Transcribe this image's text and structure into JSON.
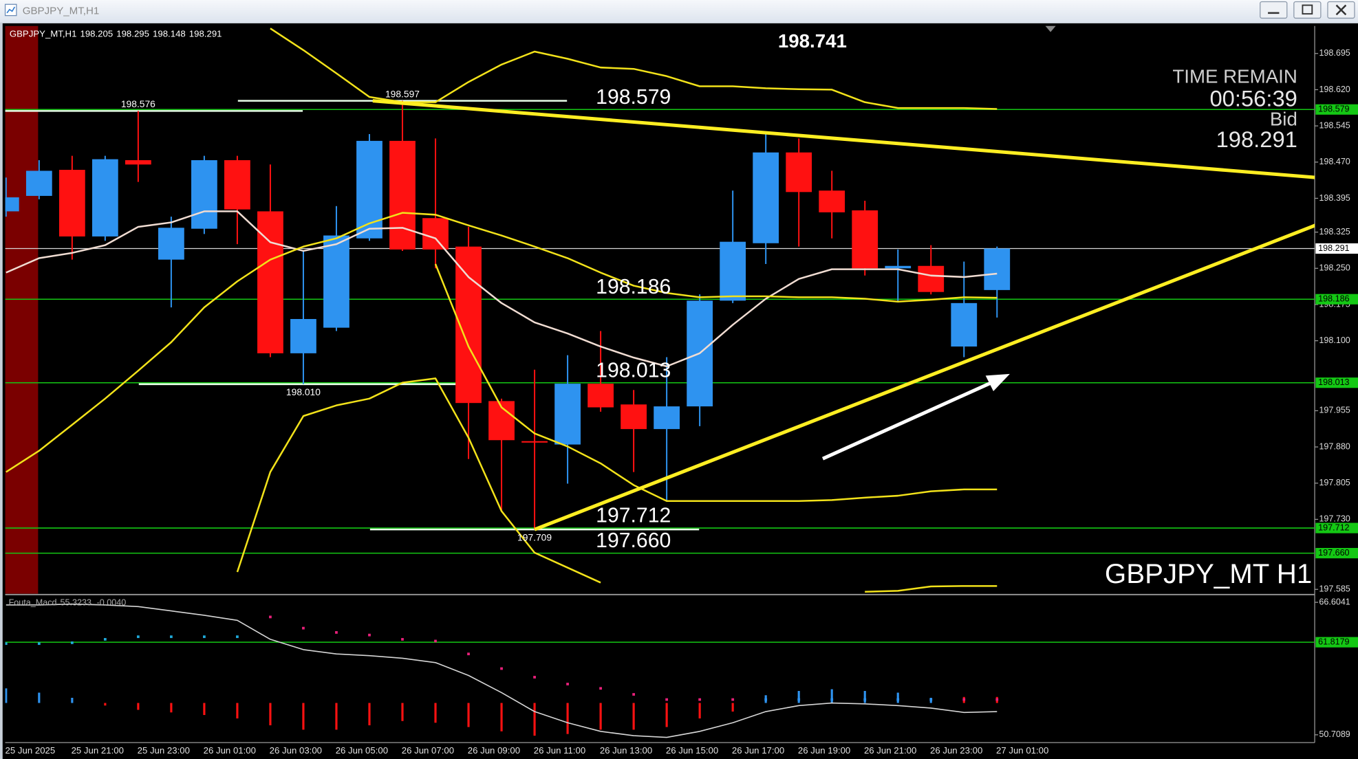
{
  "chart_data": {
    "type": "candlestick",
    "title": "GBPJPY_MT,H1",
    "categories": [
      "25 Jun 2025",
      null,
      "25 Jun 21:00",
      null,
      "25 Jun 23:00",
      null,
      "26 Jun 01:00",
      null,
      "26 Jun 03:00",
      null,
      "26 Jun 05:00",
      null,
      "26 Jun 07:00",
      null,
      "26 Jun 09:00",
      null,
      "26 Jun 11:00",
      null,
      "26 Jun 13:00",
      null,
      "26 Jun 15:00",
      null,
      "26 Jun 17:00",
      null,
      "26 Jun 19:00",
      null,
      "26 Jun 21:00",
      null,
      "26 Jun 23:00",
      null,
      "27 Jun 01:00"
    ],
    "open": [
      198.368,
      198.4,
      198.454,
      198.316,
      198.474,
      198.268,
      198.332,
      198.474,
      198.368,
      198.074,
      198.127,
      198.312,
      198.514,
      198.354,
      198.295,
      197.975,
      197.892,
      197.885,
      198.011,
      197.968,
      197.917,
      197.964,
      198.183,
      198.302,
      198.49,
      198.411,
      198.37,
      198.25,
      198.255,
      198.088,
      198.205
    ],
    "high": [
      198.438,
      198.474,
      198.483,
      198.483,
      198.576,
      198.357,
      198.483,
      198.483,
      198.465,
      198.286,
      198.379,
      198.528,
      198.597,
      198.519,
      198.336,
      197.98,
      198.04,
      198.07,
      198.12,
      197.998,
      198.066,
      198.196,
      198.411,
      198.528,
      198.519,
      198.452,
      198.39,
      198.289,
      198.298,
      198.264,
      198.295
    ],
    "low": [
      198.357,
      198.393,
      198.268,
      198.307,
      198.429,
      198.169,
      198.321,
      198.3,
      198.066,
      198.01,
      198.12,
      198.307,
      198.286,
      198.25,
      197.855,
      197.747,
      197.709,
      197.804,
      197.953,
      197.828,
      197.768,
      197.923,
      198.178,
      198.259,
      198.295,
      198.312,
      198.235,
      198.181,
      198.196,
      198.066,
      198.148
    ],
    "close": [
      198.397,
      198.452,
      198.316,
      198.476,
      198.465,
      198.334,
      198.474,
      198.372,
      198.074,
      198.145,
      198.318,
      198.514,
      198.289,
      198.289,
      197.971,
      197.894,
      197.889,
      198.011,
      197.962,
      197.917,
      197.964,
      198.183,
      198.305,
      198.49,
      198.408,
      198.366,
      198.25,
      198.255,
      198.201,
      198.178,
      198.291
    ],
    "up_color": "#2e93f0",
    "down_color": "#ff1111",
    "ylim": [
      197.576,
      198.752
    ],
    "yticks": [
      198.695,
      {
        "value": 198.62,
        "label": "198.620"
      },
      198.545,
      {
        "value": 198.47,
        "label": "198.470"
      },
      198.395,
      198.325,
      {
        "value": 198.25,
        "label": "198.250"
      },
      198.175,
      {
        "value": 198.1,
        "label": "198.100"
      },
      197.955,
      {
        "value": 197.88,
        "label": "197.880"
      },
      197.805,
      {
        "value": 197.73,
        "label": "197.730"
      },
      197.585
    ],
    "overlays": [
      {
        "color": "#f0dcd2",
        "values": [
          198.241,
          198.271,
          198.282,
          198.298,
          198.336,
          198.345,
          198.368,
          198.368,
          198.304,
          198.286,
          198.3,
          198.332,
          198.334,
          198.312,
          198.232,
          198.178,
          198.138,
          198.115,
          198.088,
          198.065,
          198.047,
          198.074,
          198.133,
          198.187,
          198.228,
          198.248,
          198.248,
          198.248,
          198.235,
          198.232,
          198.239
        ]
      },
      {
        "color": "#f2e21a",
        "values": [
          197.828,
          197.872,
          197.926,
          197.98,
          198.038,
          198.097,
          198.169,
          198.223,
          198.268,
          198.295,
          198.312,
          198.343,
          198.365,
          198.361,
          198.339,
          198.318,
          198.295,
          198.271,
          198.241,
          198.214,
          198.199,
          198.19,
          198.192,
          198.192,
          198.19,
          198.19,
          198.187,
          198.181,
          198.185,
          198.19,
          198.189
        ]
      },
      {
        "color": "#f2e21a",
        "values": [
          null,
          null,
          null,
          null,
          null,
          null,
          null,
          197.621,
          197.828,
          197.944,
          197.966,
          197.98,
          198.013,
          198.022,
          197.899,
          197.747,
          197.661,
          197.63,
          197.599,
          null,
          null,
          null,
          null,
          null,
          null,
          null,
          197.58,
          197.582,
          197.591,
          197.592,
          197.592
        ]
      },
      {
        "color": "#f2e21a",
        "values": [
          null,
          null,
          null,
          null,
          null,
          null,
          null,
          null,
          198.747,
          198.702,
          198.654,
          198.605,
          198.594,
          198.594,
          198.636,
          198.672,
          198.699,
          198.684,
          198.666,
          198.663,
          198.648,
          198.627,
          198.627,
          198.623,
          198.621,
          198.62,
          198.594,
          198.582,
          198.582,
          198.582,
          198.58
        ]
      },
      {
        "color": "#f2e21a",
        "values": [
          null,
          null,
          null,
          null,
          null,
          null,
          null,
          null,
          null,
          null,
          null,
          null,
          null,
          198.259,
          198.088,
          197.962,
          197.908,
          197.881,
          197.846,
          197.801,
          197.768,
          197.768,
          197.768,
          197.768,
          197.768,
          197.77,
          197.775,
          197.779,
          197.788,
          197.792,
          197.792
        ]
      }
    ],
    "levels": [
      198.579,
      198.186,
      198.013,
      197.712,
      {
        "value": 197.66,
        "label": "197.660"
      }
    ],
    "level_color": "#14c814",
    "swings": [
      {
        "x": 4,
        "y": 198.576
      },
      {
        "x": 12,
        "y": 198.597
      },
      {
        "x": 9,
        "y": {
          "value": 198.01,
          "label": "198.010"
        }
      },
      {
        "x": 16,
        "y": 197.709
      }
    ],
    "trendlines": [
      {
        "x": [
          11.1,
          39.67
        ],
        "y": [
          198.597,
          198.438
        ]
      },
      {
        "x": [
          16,
          39.67
        ],
        "y": [
          197.709,
          198.34
        ]
      }
    ],
    "trendline_color": "#ffee22",
    "top_label": 198.741,
    "time_remain_label": "TIME REMAIN",
    "time_remain": "00:56:39",
    "bid_label": "Bid",
    "watermark": "GBPJPY_MT H1",
    "indicator": {
      "title": "Fouta_Macd",
      "readings": [
        55.3233,
        {
          "value": -0.004,
          "label": "-0.0040"
        }
      ],
      "ylim": [
        49.78,
        67.43
      ],
      "yticks": [
        66.6041,
        50.7089
      ],
      "level": 61.8179,
      "line_color": "#d6d6d6",
      "line": [
        66.292,
        66.292,
        66.395,
        66.292,
        66.086,
        65.57,
        65.054,
        64.435,
        62.164,
        60.926,
        60.41,
        60.203,
        59.894,
        59.378,
        57.83,
        55.766,
        53.495,
        52.154,
        51.122,
        50.606,
        50.399,
        51.122,
        52.154,
        53.495,
        54.218,
        54.527,
        54.424,
        54.218,
        53.908,
        53.392,
        53.495
      ],
      "dots": [
        61.648,
        61.648,
        61.751,
        62.164,
        62.474,
        62.474,
        62.474,
        62.474,
        64.847,
        63.506,
        62.99,
        62.68,
        62.164,
        61.958,
        60.41,
        58.655,
        57.623,
        56.798,
        56.282,
        55.559,
        54.94,
        54.94,
        54.94,
        54.94,
        54.94,
        54.94,
        54.94,
        54.94,
        54.94,
        54.94,
        54.94
      ],
      "dot_colors": [
        "#1fa8d8",
        "#1fa8d8",
        "#1fa8d8",
        "#1fa8d8",
        "#1fa8d8",
        "#1fa8d8",
        "#1fa8d8",
        "#1fa8d8",
        "#e8207a",
        "#e8207a",
        "#e8207a",
        "#e8207a",
        "#e8207a",
        "#e8207a",
        "#e8207a",
        "#e8207a",
        "#e8207a",
        "#e8207a",
        "#e8207a",
        "#e8207a",
        "#e8207a",
        "#e8207a",
        "#e8207a",
        "#2e93f0",
        "#2e93f0",
        "#2e93f0",
        "#2e93f0",
        "#2e93f0",
        "#2e93f0",
        "#e8207a",
        "#e8207a"
      ],
      "hist_base": 54.528,
      "hist": [
        56.282,
        55.766,
        55.147,
        54.218,
        53.702,
        53.392,
        53.083,
        52.67,
        51.844,
        51.328,
        51.328,
        51.844,
        52.36,
        52.154,
        51.638,
        51.122,
        50.606,
        50.812,
        51.328,
        51.328,
        51.638,
        52.67,
        53.496,
        55.457,
        55.973,
        56.179,
        55.973,
        55.766,
        55.147,
        55.25,
        55.25
      ],
      "hist_colors": [
        "#2e93f0",
        "#2e93f0",
        "#2e93f0",
        "#ff1111",
        "#ff1111",
        "#ff1111",
        "#ff1111",
        "#ff1111",
        "#ff1111",
        "#ff1111",
        "#ff1111",
        "#ff1111",
        "#ff1111",
        "#ff1111",
        "#ff1111",
        "#ff1111",
        "#ff1111",
        "#ff1111",
        "#ff1111",
        "#ff1111",
        "#ff1111",
        "#ff1111",
        "#ff1111",
        "#2e93f0",
        "#2e93f0",
        "#2e93f0",
        "#2e93f0",
        "#2e93f0",
        "#2e93f0",
        "#ff1111",
        "#ff1111"
      ]
    }
  }
}
